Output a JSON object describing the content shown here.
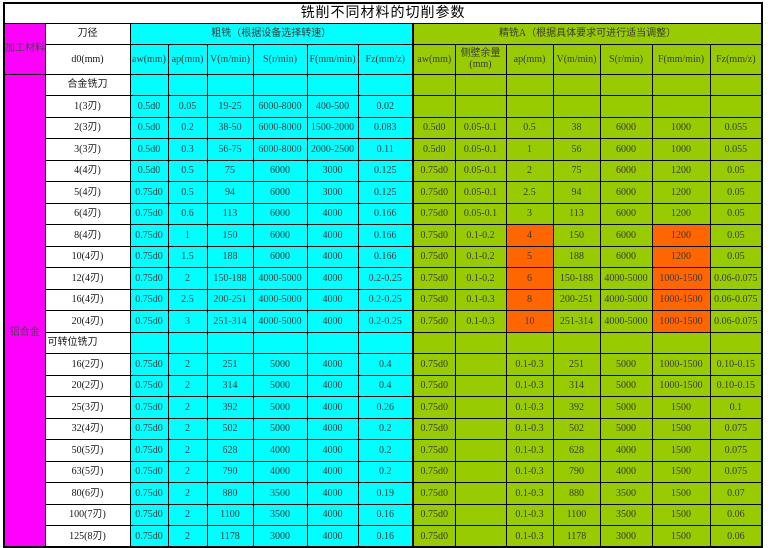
{
  "title": "铣削不同材料的切削参数",
  "colors": {
    "magenta": "#FF00FF",
    "cyan": "#00FFFF",
    "green": "#99CC00",
    "orange": "#FF6600"
  },
  "header": {
    "material_label": "加工材料",
    "tool_diameter_label": "刀径",
    "d0_label": "d0(mm)",
    "rough_group": "粗铣（根据设备选择转速）",
    "finish_group": "精铣A（根据具体要求可进行适当调整）",
    "rough_cols": [
      "aw(mm)",
      "ap(mm)",
      "V(m/min)",
      "S(r/min)",
      "F(mm/min)",
      "Fz(mm/z)"
    ],
    "finish_cols": [
      "aw(mm)",
      [
        "侧壁余量",
        "(mm)"
      ],
      "ap(mm)",
      "V(m/min)",
      "S(r/min)",
      "F(mm/min)",
      "Fz(mm/z)"
    ]
  },
  "table": {
    "material": "铝合金",
    "rows": [
      {
        "type": "section",
        "label": "合金铣刀",
        "align": "center"
      },
      {
        "type": "data",
        "d0": "1(3刃)",
        "rough": [
          "0.5d0",
          "0.05",
          "19-25",
          "6000-8000",
          "400-500",
          "0.02"
        ],
        "finish": [
          "",
          "",
          "",
          "",
          "",
          "",
          ""
        ]
      },
      {
        "type": "data",
        "d0": "2(3刃)",
        "rough": [
          "0.5d0",
          "0.2",
          "38-50",
          "6000-8000",
          "1500-2000",
          "0.083"
        ],
        "finish": [
          "0.5d0",
          "0.05-0.1",
          "0.5",
          "38",
          "6000",
          "1000",
          "0.055"
        ]
      },
      {
        "type": "data",
        "d0": "3(3刃)",
        "rough": [
          "0.5d0",
          "0.3",
          "56-75",
          "6000-8000",
          "2000-2500",
          "0.11"
        ],
        "finish": [
          "0.5d0",
          "0.05-0.1",
          "1",
          "56",
          "6000",
          "1000",
          "0.055"
        ]
      },
      {
        "type": "data",
        "d0": "4(4刃)",
        "rough": [
          "0.5d0",
          "0.5",
          "75",
          "6000",
          "3000",
          "0.125"
        ],
        "finish": [
          "0.75d0",
          "0.05-0.1",
          "2",
          "75",
          "6000",
          "1200",
          "0.05"
        ]
      },
      {
        "type": "data",
        "d0": "5(4刃)",
        "rough": [
          "0.75d0",
          "0.5",
          "94",
          "6000",
          "3000",
          "0.125"
        ],
        "finish": [
          "0.75d0",
          "0.05-0.1",
          "2.5",
          "94",
          "6000",
          "1200",
          "0.05"
        ]
      },
      {
        "type": "data",
        "d0": "6(4刃)",
        "rough": [
          "0.75d0",
          "0.6",
          "113",
          "6000",
          "4000",
          "0.166"
        ],
        "finish": [
          "0.75d0",
          "0.05-0.1",
          "3",
          "113",
          "6000",
          "1200",
          "0.05"
        ]
      },
      {
        "type": "data",
        "d0": "8(4刃)",
        "rough": [
          "0.75d0",
          "1",
          "150",
          "6000",
          "4000",
          "0.166"
        ],
        "finish": [
          "0.75d0",
          "0.1-0.2",
          "4",
          "150",
          "6000",
          "1200",
          "0.05"
        ],
        "orange_cols": [
          2,
          5
        ]
      },
      {
        "type": "data",
        "d0": "10(4刃)",
        "rough": [
          "0.75d0",
          "1.5",
          "188",
          "6000",
          "4000",
          "0.166"
        ],
        "finish": [
          "0.75d0",
          "0.1-0.2",
          "5",
          "188",
          "6000",
          "1200",
          "0.05"
        ],
        "orange_cols": [
          2,
          5
        ]
      },
      {
        "type": "data",
        "d0": "12(4刃)",
        "rough": [
          "0.75d0",
          "2",
          "150-188",
          "4000-5000",
          "4000",
          "0.2-0.25"
        ],
        "finish": [
          "0.75d0",
          "0.1-0.2",
          "6",
          "150-188",
          "4000-5000",
          "1000-1500",
          "0.06-0.075"
        ],
        "orange_cols": [
          2,
          5
        ]
      },
      {
        "type": "data",
        "d0": "16(4刃)",
        "rough": [
          "0.75d0",
          "2.5",
          "200-251",
          "4000-5000",
          "4000",
          "0.2-0.25"
        ],
        "finish": [
          "0.75d0",
          "0.1-0.3",
          "8",
          "200-251",
          "4000-5000",
          "1000-1500",
          "0.06-0.075"
        ],
        "orange_cols": [
          2,
          5
        ]
      },
      {
        "type": "data",
        "d0": "20(4刃)",
        "rough": [
          "0.75d0",
          "3",
          "251-314",
          "4000-5000",
          "4000",
          "0.2-0.25"
        ],
        "finish": [
          "0.75d0",
          "0.1-0.3",
          "10",
          "251-314",
          "4000-5000",
          "1000-1500",
          "0.06-0.075"
        ],
        "orange_cols": [
          2,
          5
        ]
      },
      {
        "type": "section",
        "label": "可转位铣刀",
        "align": "left"
      },
      {
        "type": "data",
        "d0": "16(2刃)",
        "rough": [
          "0.75d0",
          "2",
          "251",
          "5000",
          "4000",
          "0.4"
        ],
        "finish": [
          "0.75d0",
          "",
          "0.1-0.3",
          "251",
          "5000",
          "1000-1500",
          "0.10-0.15"
        ]
      },
      {
        "type": "data",
        "d0": "20(2刃)",
        "rough": [
          "0.75d0",
          "2",
          "314",
          "5000",
          "4000",
          "0.4"
        ],
        "finish": [
          "0.75d0",
          "",
          "0.1-0.3",
          "314",
          "5000",
          "1000-1500",
          "0.10-0.15"
        ]
      },
      {
        "type": "data",
        "d0": "25(3刃)",
        "rough": [
          "0.75d0",
          "2",
          "392",
          "5000",
          "4000",
          "0.26"
        ],
        "finish": [
          "0.75d0",
          "",
          "0.1-0.3",
          "392",
          "5000",
          "1500",
          "0.1"
        ]
      },
      {
        "type": "data",
        "d0": "32(4刃)",
        "rough": [
          "0.75d0",
          "2",
          "502",
          "5000",
          "4000",
          "0.2"
        ],
        "finish": [
          "0.75d0",
          "",
          "0.1-0.3",
          "502",
          "5000",
          "1500",
          "0.075"
        ]
      },
      {
        "type": "data",
        "d0": "50(5刃)",
        "rough": [
          "0.75d0",
          "2",
          "628",
          "4000",
          "4000",
          "0.2"
        ],
        "finish": [
          "0.75d0",
          "",
          "0.1-0.3",
          "628",
          "4000",
          "1500",
          "0.075"
        ]
      },
      {
        "type": "data",
        "d0": "63(5刃)",
        "rough": [
          "0.75d0",
          "2",
          "790",
          "4000",
          "4000",
          "0.2"
        ],
        "finish": [
          "0.75d0",
          "",
          "0.1-0.3",
          "790",
          "4000",
          "1500",
          "0.075"
        ]
      },
      {
        "type": "data",
        "d0": "80(6刃)",
        "rough": [
          "0.75d0",
          "2",
          "880",
          "3500",
          "4000",
          "0.19"
        ],
        "finish": [
          "0.75d0",
          "",
          "0.1-0.3",
          "880",
          "3500",
          "1500",
          "0.07"
        ]
      },
      {
        "type": "data",
        "d0": "100(7刃)",
        "rough": [
          "0.75d0",
          "2",
          "1100",
          "3500",
          "4000",
          "0.16"
        ],
        "finish": [
          "0.75d0",
          "",
          "0.1-0.3",
          "1100",
          "3500",
          "1500",
          "0.06"
        ]
      },
      {
        "type": "data",
        "d0": "125(8刃)",
        "rough": [
          "0.75d0",
          "2",
          "1178",
          "3000",
          "4000",
          "0.16"
        ],
        "finish": [
          "0.75d0",
          "",
          "0.1-0.3",
          "1178",
          "3000",
          "1500",
          "0.06"
        ]
      }
    ]
  }
}
